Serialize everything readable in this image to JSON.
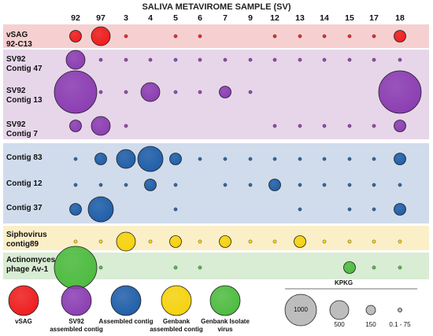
{
  "chart_data": {
    "type": "bubble-matrix",
    "title": "SALIVA METAVIROME SAMPLE (SV)",
    "columns": [
      "92",
      "97",
      "3",
      "4",
      "5",
      "6",
      "7",
      "9",
      "12",
      "13",
      "14",
      "15",
      "17",
      "18"
    ],
    "rows": [
      {
        "label": "vSAG\n92-C13",
        "category": "vSAG",
        "values": [
          150,
          500,
          0.1,
          0,
          0.1,
          0.1,
          0,
          0,
          0.1,
          0.1,
          0.1,
          0.1,
          0.1,
          150
        ]
      },
      {
        "label": "SV92\nContig 47",
        "category": "SV92 assembled contig",
        "values": [
          500,
          0.1,
          0.1,
          0.1,
          0.1,
          0.1,
          0.1,
          0.1,
          0.1,
          0.1,
          0.1,
          0.1,
          0.1,
          0.1
        ]
      },
      {
        "label": "SV92\nContig 13",
        "category": "SV92 assembled contig",
        "values": [
          1000,
          0.1,
          0.1,
          500,
          0.1,
          0.1,
          150,
          0.1,
          0,
          0,
          0,
          0,
          0,
          1000
        ]
      },
      {
        "label": "SV92\nContig 7",
        "category": "SV92 assembled contig",
        "values": [
          150,
          500,
          0.1,
          0,
          0,
          0,
          0,
          0,
          0.1,
          0.1,
          0.1,
          0.1,
          0.1,
          150
        ]
      },
      {
        "label": "Contig 83",
        "category": "Assembled contig",
        "values": [
          0.1,
          150,
          500,
          750,
          150,
          0.1,
          0.1,
          0.1,
          0.1,
          0.1,
          0.1,
          0.1,
          0.1,
          150
        ]
      },
      {
        "label": "Contig 12",
        "category": "Assembled contig",
        "values": [
          0.1,
          0.1,
          0.1,
          150,
          0.1,
          0,
          0.1,
          0.1,
          150,
          0.1,
          0.1,
          0.1,
          0.1,
          0.1
        ]
      },
      {
        "label": "Contig 37",
        "category": "Assembled contig",
        "values": [
          150,
          750,
          0,
          0,
          0.1,
          0,
          0,
          0,
          0,
          0.1,
          0,
          0.1,
          0.1,
          150
        ]
      },
      {
        "label": "Siphovirus\ncontig89",
        "category": "Genbank assembled contig",
        "values": [
          0.1,
          0.1,
          500,
          0.1,
          150,
          0.1,
          150,
          0.1,
          0.1,
          150,
          0.1,
          0.1,
          0.1,
          0.1
        ]
      },
      {
        "label": "Actinomyces\nphage Av-1",
        "category": "Genbank Isolate virus",
        "values": [
          1000,
          0.1,
          0,
          0,
          0.1,
          0.1,
          0,
          0,
          0,
          0,
          0,
          150,
          0.1,
          0.1
        ]
      }
    ],
    "groups": [
      {
        "rows": [
          0
        ],
        "color": "#f6d0d0"
      },
      {
        "rows": [
          1,
          2,
          3
        ],
        "color": "#e7d6ea"
      },
      {
        "rows": [
          4,
          5,
          6
        ],
        "color": "#d0dcec"
      },
      {
        "rows": [
          7
        ],
        "color": "#fbefc8"
      },
      {
        "rows": [
          8
        ],
        "color": "#d9ecd4"
      }
    ],
    "category_legend": [
      {
        "label": "vSAG",
        "color": "#ee1c1c"
      },
      {
        "label": "SV92\nassembled contig",
        "color": "#8b3db2"
      },
      {
        "label": "Assembled contig",
        "color": "#1f5ea8"
      },
      {
        "label": "Genbank\nassembled contig",
        "color": "#f5d20c"
      },
      {
        "label": "Genbank Isolate\nvirus",
        "color": "#4dbb3f"
      }
    ],
    "size_legend": {
      "title": "KPKG",
      "entries": [
        {
          "label": "1000",
          "value": 1000
        },
        {
          "label": "500",
          "value": 500
        },
        {
          "label": "150",
          "value": 150
        },
        {
          "label": "0.1 - 75",
          "value": 0.1
        }
      ]
    }
  }
}
